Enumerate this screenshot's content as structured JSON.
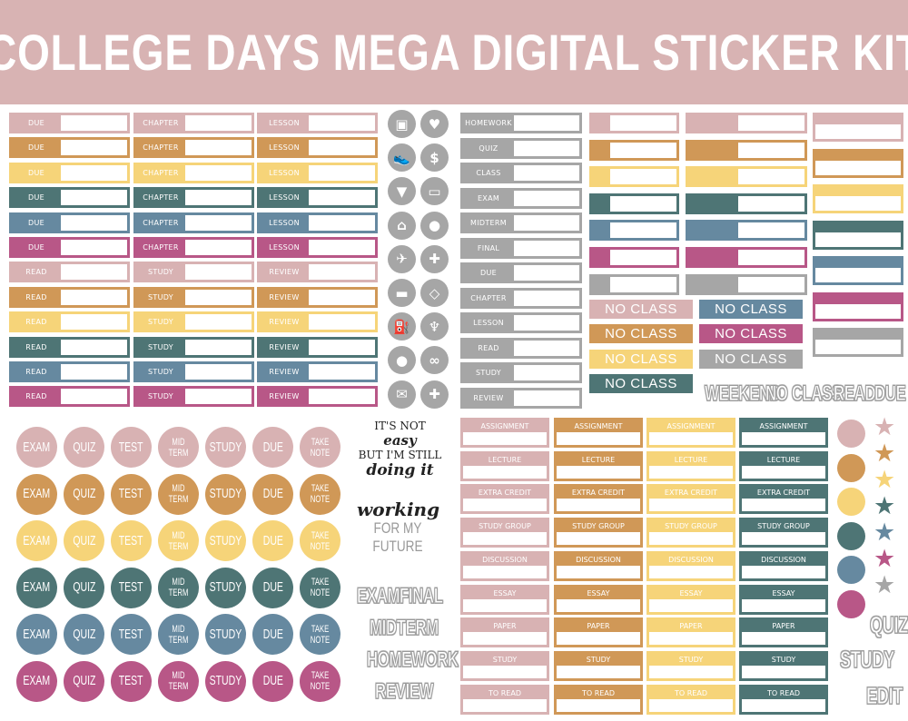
{
  "title": "COLLEGE DAYS MEGA DIGITAL STICKER KIT",
  "colors": {
    "banner": "#d8b3b3",
    "pink": "#d8b2b3",
    "orange": "#d09857",
    "yellow": "#f6d479",
    "teal": "#4e7575",
    "blue": "#6689a0",
    "magenta": "#b85787",
    "gray": "#a6a6a6"
  },
  "palette_order": [
    "pink",
    "orange",
    "yellow",
    "teal",
    "blue",
    "magenta"
  ],
  "label_grid": {
    "columns": [
      [
        "DUE",
        "DUE",
        "DUE",
        "DUE",
        "DUE",
        "DUE",
        "READ",
        "READ",
        "READ",
        "READ",
        "READ",
        "READ"
      ],
      [
        "CHAPTER",
        "CHAPTER",
        "CHAPTER",
        "CHAPTER",
        "CHAPTER",
        "CHAPTER",
        "STUDY",
        "STUDY",
        "STUDY",
        "STUDY",
        "STUDY",
        "STUDY"
      ],
      [
        "LESSON",
        "LESSON",
        "LESSON",
        "LESSON",
        "LESSON",
        "LESSON",
        "REVIEW",
        "REVIEW",
        "REVIEW",
        "REVIEW",
        "REVIEW",
        "REVIEW"
      ]
    ]
  },
  "icons": [
    {
      "name": "tv-icon",
      "glyph": "▣"
    },
    {
      "name": "gift-box-icon",
      "glyph": "♥"
    },
    {
      "name": "sneaker-icon",
      "glyph": "👟"
    },
    {
      "name": "dollar-icon",
      "glyph": "$"
    },
    {
      "name": "basket-icon",
      "glyph": "▼"
    },
    {
      "name": "credit-card-icon",
      "glyph": "▭"
    },
    {
      "name": "house-icon",
      "glyph": "⌂"
    },
    {
      "name": "piggy-bank-icon",
      "glyph": "●"
    },
    {
      "name": "airplane-icon",
      "glyph": "✈"
    },
    {
      "name": "gamepad-icon",
      "glyph": "✚"
    },
    {
      "name": "car-icon",
      "glyph": "▬"
    },
    {
      "name": "diamond-icon",
      "glyph": "◇"
    },
    {
      "name": "gas-pump-icon",
      "glyph": "⛽"
    },
    {
      "name": "tooth-icon",
      "glyph": "♆"
    },
    {
      "name": "location-pin-icon",
      "glyph": "●"
    },
    {
      "name": "pills-icon",
      "glyph": "∞"
    },
    {
      "name": "envelope-icon",
      "glyph": "✉"
    },
    {
      "name": "first-aid-icon",
      "glyph": "✚"
    }
  ],
  "gray_labels": [
    "HOMEWORK",
    "QUIZ",
    "CLASS",
    "EXAM",
    "MIDTERM",
    "FINAL",
    "DUE",
    "CHAPTER",
    "LESSON",
    "READ",
    "STUDY",
    "REVIEW"
  ],
  "blank_bar_colors": [
    "pink",
    "orange",
    "yellow",
    "teal",
    "blue",
    "magenta",
    "gray"
  ],
  "no_class": {
    "label": "NO CLASS",
    "col1": [
      "pink",
      "orange",
      "yellow",
      "teal"
    ],
    "col2": [
      "blue",
      "magenta",
      "gray"
    ]
  },
  "outline_words_top": [
    "WEEKEND",
    "NO CLASS",
    "READ",
    "DUE"
  ],
  "circle_stickers": [
    "EXAM",
    "QUIZ",
    "TEST",
    "MID TERM",
    "STUDY",
    "DUE",
    "TAKE NOTE"
  ],
  "quote1": {
    "line1": "IT'S NOT",
    "line1b": "easy",
    "line2": "BUT I'M STILL",
    "line3": "doing it"
  },
  "quote2": {
    "line1": "working",
    "line2": "FOR MY",
    "line3": "FUTURE"
  },
  "outline_words_mid": [
    "EXAM",
    "FINAL",
    "MIDTERM",
    "HOMEWORK",
    "REVIEW"
  ],
  "box_labels": {
    "colors": [
      "pink",
      "orange",
      "yellow",
      "teal"
    ],
    "rows": [
      "ASSIGNMENT",
      "LECTURE",
      "EXTRA CREDIT",
      "STUDY GROUP",
      "DISCUSSION",
      "ESSAY",
      "PAPER",
      "STUDY",
      "TO READ"
    ]
  },
  "right_dots": [
    "pink",
    "orange",
    "yellow",
    "teal",
    "blue",
    "magenta"
  ],
  "right_stars": [
    "pink",
    "orange",
    "yellow",
    "teal",
    "blue",
    "magenta",
    "gray"
  ],
  "outline_words_right": [
    "QUIZ",
    "STUDY",
    "EDIT"
  ]
}
